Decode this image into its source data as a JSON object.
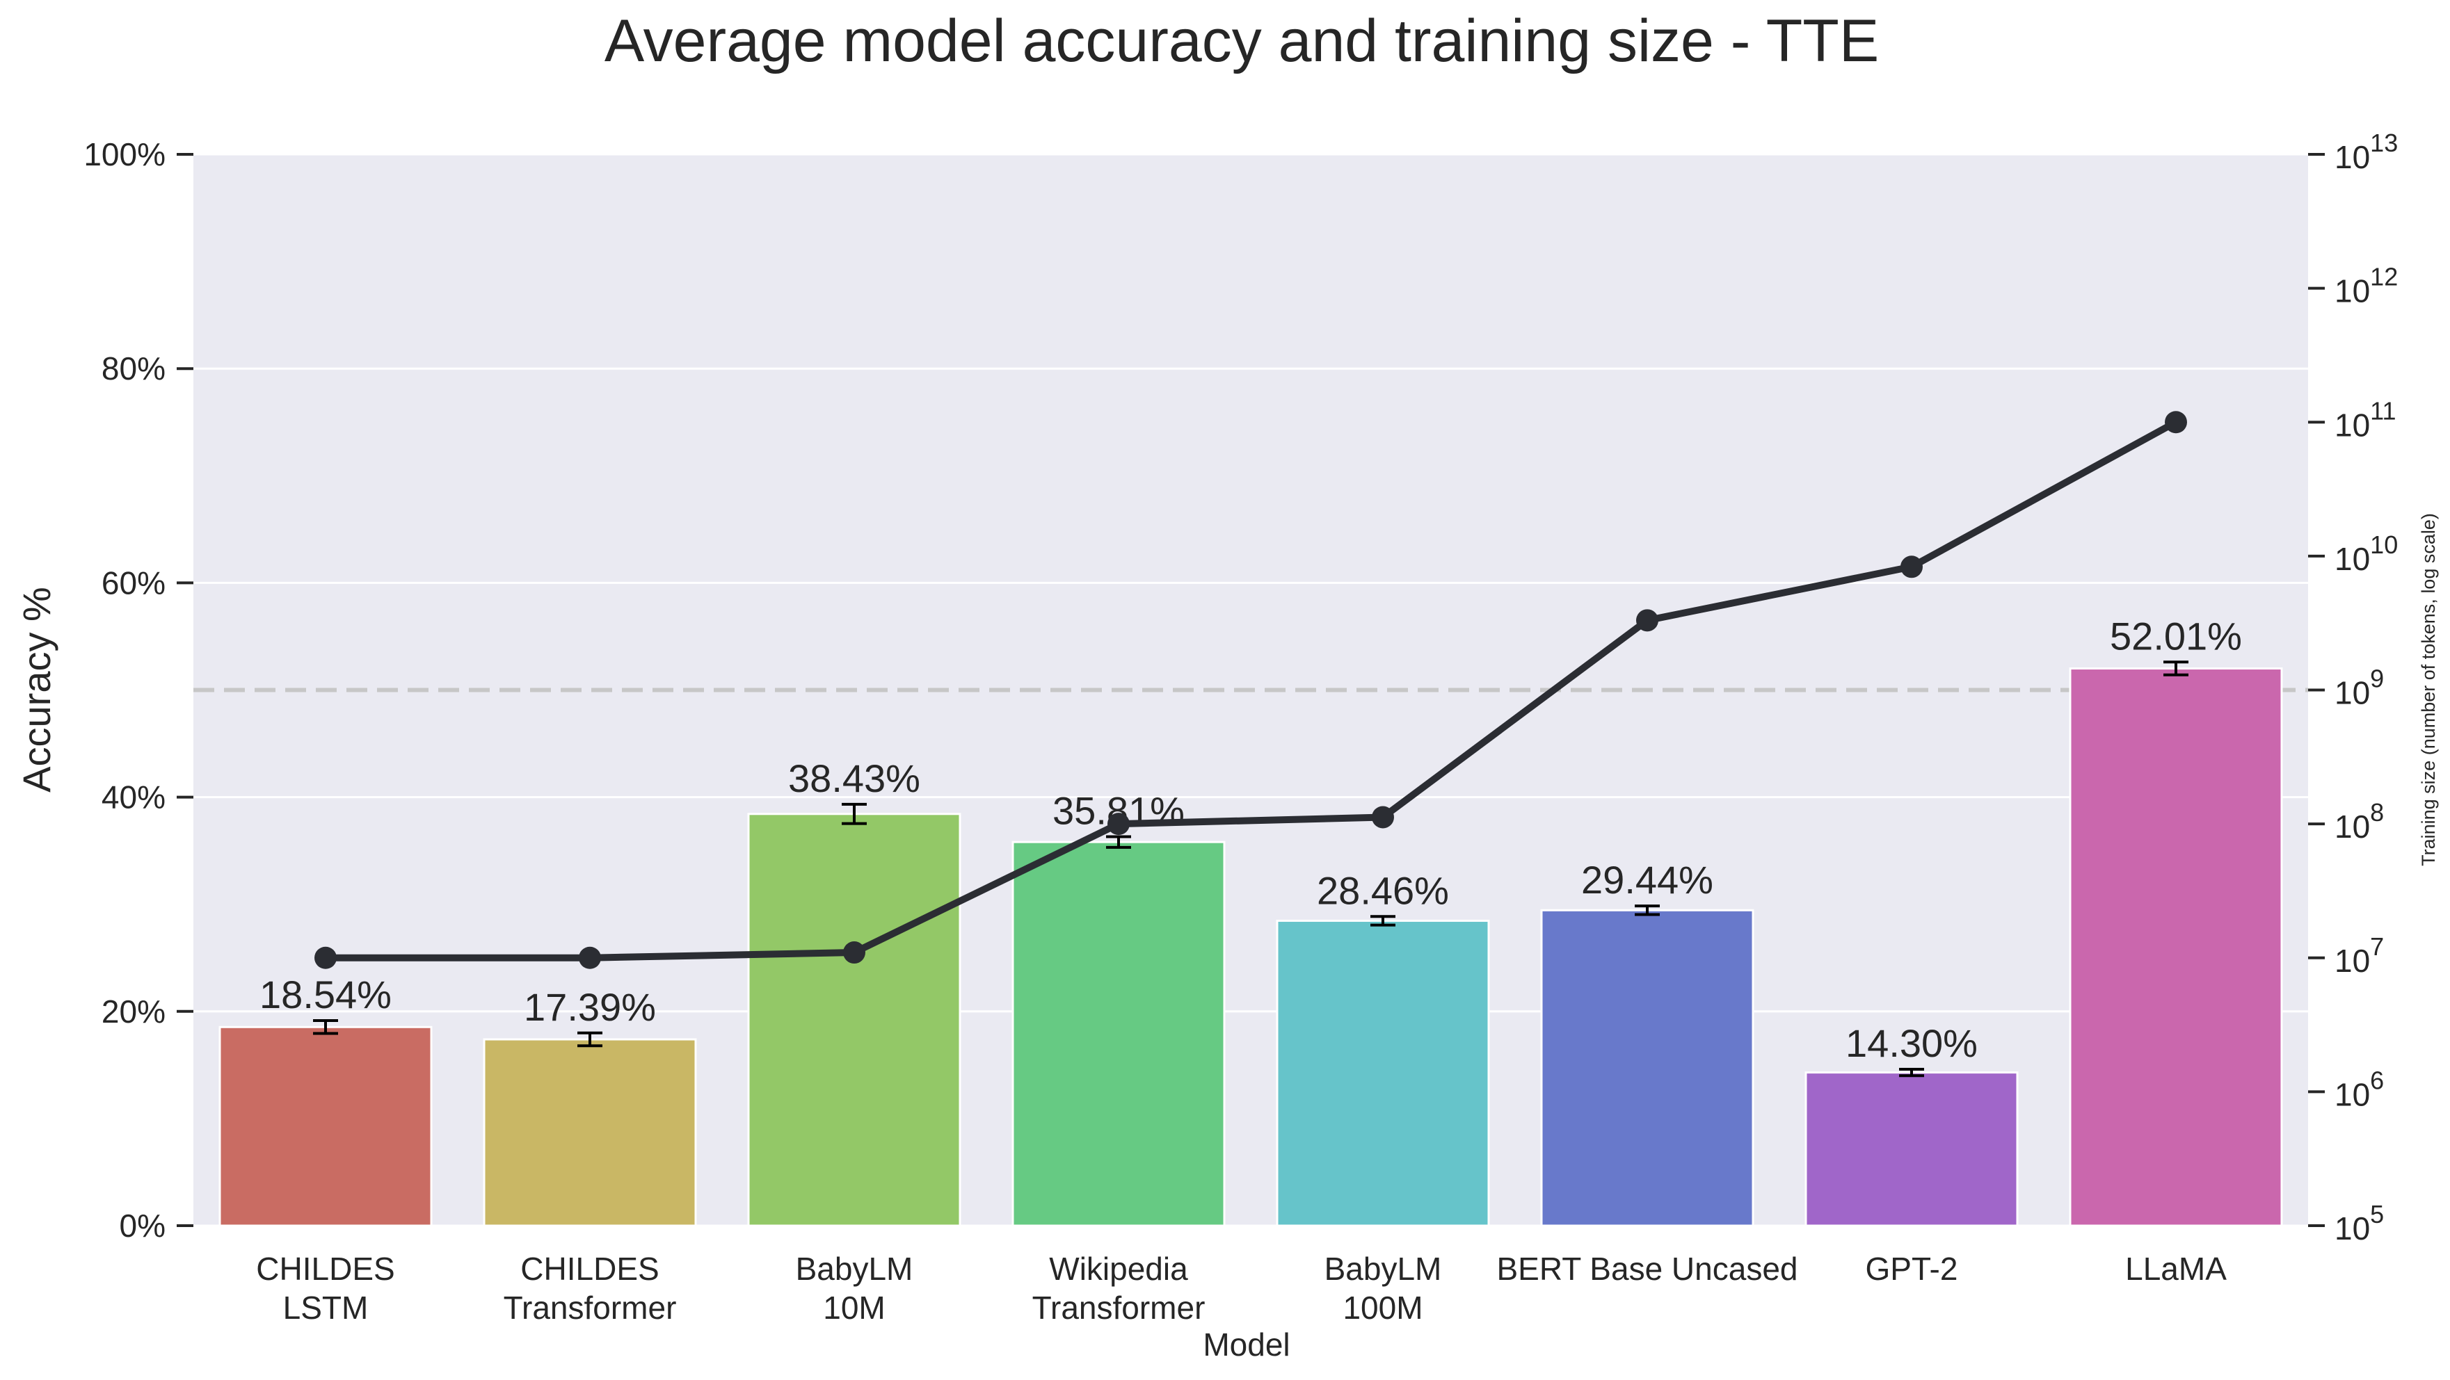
{
  "chart_data": {
    "type": "bar",
    "title": "Average model accuracy and training size - TTE",
    "xlabel": "Model",
    "ylabel": "Accuracy %",
    "y2label": "Training size (number of tokens, log scale)",
    "ylim": [
      0,
      100
    ],
    "y2lim_log10": [
      5,
      13
    ],
    "categories": [
      [
        "CHILDES",
        "LSTM"
      ],
      [
        "CHILDES",
        "Transformer"
      ],
      [
        "BabyLM",
        "10M"
      ],
      [
        "Wikipedia",
        "Transformer"
      ],
      [
        "BabyLM",
        "100M"
      ],
      [
        "BERT Base Uncased"
      ],
      [
        "GPT-2"
      ],
      [
        "LLaMA"
      ]
    ],
    "values": [
      18.54,
      17.39,
      38.43,
      35.81,
      28.46,
      29.44,
      14.3,
      52.01
    ],
    "value_labels": [
      "18.54%",
      "17.39%",
      "38.43%",
      "35.81%",
      "28.46%",
      "29.44%",
      "14.30%",
      "52.01%"
    ],
    "error_bars": [
      0.6,
      0.6,
      0.9,
      0.5,
      0.4,
      0.4,
      0.3,
      0.6
    ],
    "colors": [
      "#c96c63",
      "#c9b765",
      "#93c867",
      "#66ca83",
      "#66c4ca",
      "#6879cb",
      "#a066c9",
      "#ca67ad"
    ],
    "reference_line": 50,
    "training_size_line": {
      "name": "Training size",
      "log10_values": [
        7.0,
        7.0,
        7.04,
        8.0,
        8.05,
        9.52,
        9.92,
        11.0
      ]
    },
    "y_ticks": [
      0,
      20,
      40,
      60,
      80,
      100
    ],
    "y_tick_labels": [
      "0%",
      "20%",
      "40%",
      "60%",
      "80%",
      "100%"
    ],
    "y2_tick_exponents": [
      5,
      6,
      7,
      8,
      9,
      10,
      11,
      12,
      13
    ],
    "y2_tick_base": "10",
    "grid": true
  }
}
